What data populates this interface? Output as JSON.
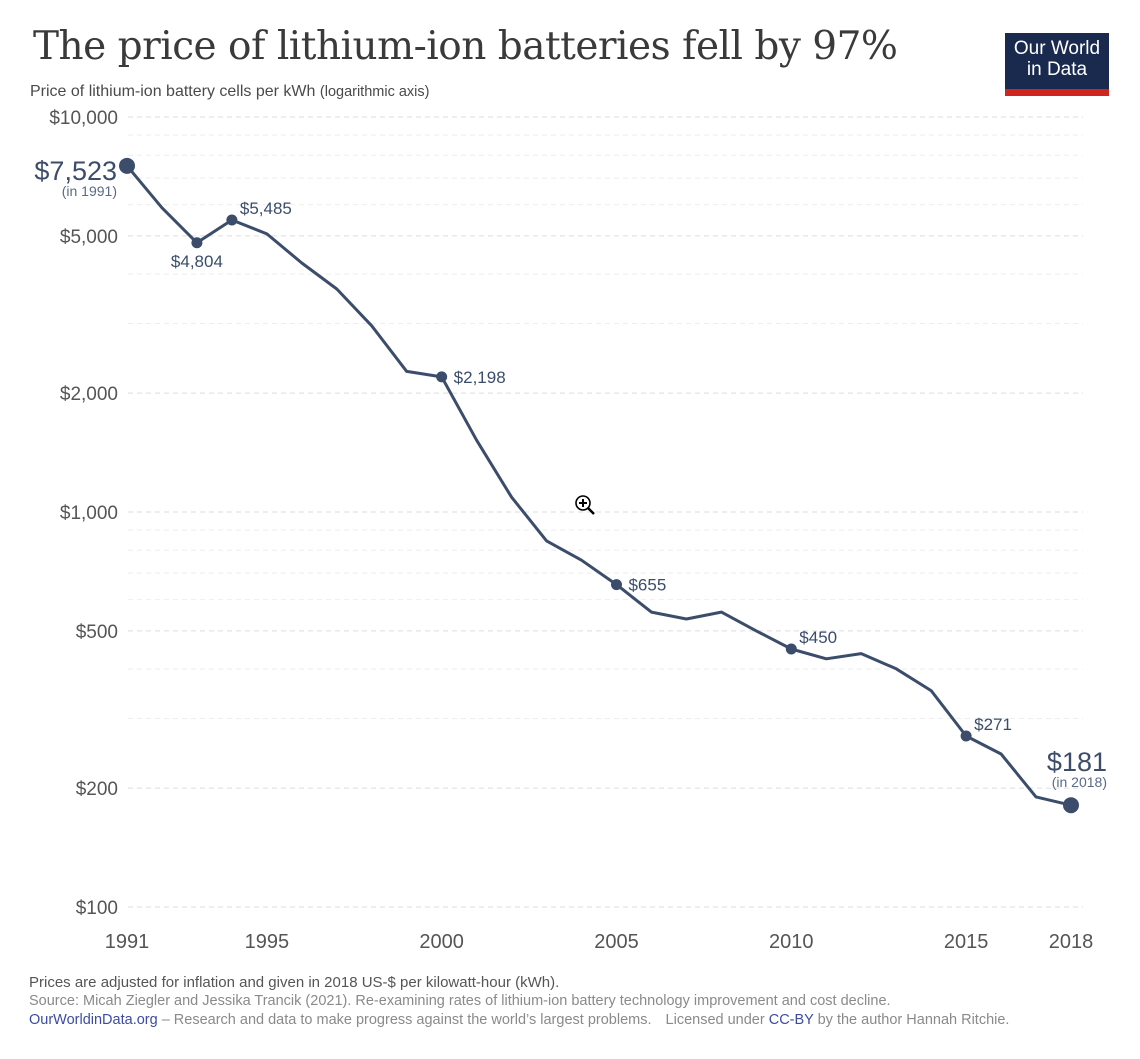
{
  "header": {
    "title": "The price of lithium-ion batteries fell by 97%",
    "subtitle": "Price of lithium-ion battery cells per kWh",
    "subtitle_note": "(logarithmic axis)",
    "logo_line1": "Our World",
    "logo_line2": "in Data"
  },
  "footer": {
    "note": "Prices are adjusted for inflation and given in 2018 US-$ per kilowatt-hour (kWh).",
    "source": "Source: Micah Ziegler and Jessika Trancik (2021). Re-examining rates of lithium-ion battery technology improvement and cost decline.",
    "site_link": "OurWorldinData.org",
    "tagline": " – Research and data to make progress against the world’s largest problems.",
    "license_prefix": "Licensed under ",
    "license_link": "CC-BY",
    "license_suffix": " by the author Hannah Ritchie."
  },
  "colors": {
    "line": "#3b4d6b",
    "label": "#3b4d6b",
    "grid": "#dddddd",
    "axis_text": "#555555",
    "logo_bg": "#1a2a4f",
    "logo_accent": "#ce261e",
    "link": "#3d4ba6"
  },
  "chart_data": {
    "type": "line",
    "title": "The price of lithium-ion batteries fell by 97%",
    "ylabel": "Price of lithium-ion battery cells per kWh (logarithmic axis)",
    "xlabel": "",
    "yscale": "log",
    "ylim": [
      100,
      10000
    ],
    "xlim": [
      1991,
      2018
    ],
    "grid": true,
    "y_ticks": [
      {
        "value": 10000,
        "label": "$10,000"
      },
      {
        "value": 5000,
        "label": "$5,000"
      },
      {
        "value": 2000,
        "label": "$2,000"
      },
      {
        "value": 1000,
        "label": "$1,000"
      },
      {
        "value": 500,
        "label": "$500"
      },
      {
        "value": 200,
        "label": "$200"
      },
      {
        "value": 100,
        "label": "$100"
      }
    ],
    "minor_grid": [
      9000,
      8000,
      7000,
      6000,
      4000,
      3000,
      900,
      800,
      700,
      600,
      400,
      300
    ],
    "x_ticks": [
      {
        "value": 1991,
        "label": "1991"
      },
      {
        "value": 1995,
        "label": "1995"
      },
      {
        "value": 2000,
        "label": "2000"
      },
      {
        "value": 2005,
        "label": "2005"
      },
      {
        "value": 2010,
        "label": "2010"
      },
      {
        "value": 2015,
        "label": "2015"
      },
      {
        "value": 2018,
        "label": "2018"
      }
    ],
    "series": [
      {
        "name": "Price per kWh (2018 US-$)",
        "x": [
          1991,
          1992,
          1993,
          1994,
          1995,
          1996,
          1997,
          1998,
          1999,
          2000,
          2001,
          2002,
          2003,
          2004,
          2005,
          2006,
          2007,
          2008,
          2009,
          2010,
          2011,
          2012,
          2013,
          2014,
          2015,
          2016,
          2017,
          2018
        ],
        "values": [
          7523,
          5890,
          4804,
          5485,
          5060,
          4270,
          3670,
          2960,
          2270,
          2198,
          1520,
          1090,
          845,
          755,
          655,
          558,
          536,
          558,
          500,
          450,
          425,
          438,
          401,
          353,
          271,
          244,
          190,
          181
        ]
      }
    ],
    "annotations": [
      {
        "year": 1991,
        "value": 7523,
        "label": "$7,523",
        "sub": "(in 1991)",
        "position": "left",
        "big": true
      },
      {
        "year": 1993,
        "value": 4804,
        "label": "$4,804",
        "position": "below",
        "big": false
      },
      {
        "year": 1994,
        "value": 5485,
        "label": "$5,485",
        "position": "above-right",
        "big": false
      },
      {
        "year": 2000,
        "value": 2198,
        "label": "$2,198",
        "position": "right",
        "big": false
      },
      {
        "year": 2005,
        "value": 655,
        "label": "$655",
        "position": "right",
        "big": false
      },
      {
        "year": 2010,
        "value": 450,
        "label": "$450",
        "position": "above-right",
        "big": false
      },
      {
        "year": 2015,
        "value": 271,
        "label": "$271",
        "position": "above-right",
        "big": false
      },
      {
        "year": 2018,
        "value": 181,
        "label": "$181",
        "sub": "(in 2018)",
        "position": "above",
        "big": true
      }
    ]
  }
}
